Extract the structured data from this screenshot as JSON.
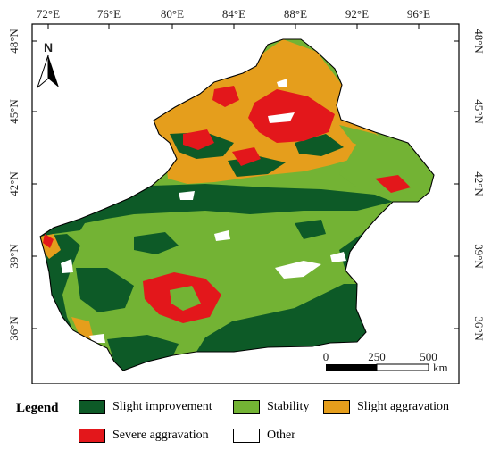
{
  "map": {
    "north_arrow_label": "N",
    "lon_ticks": [
      "72°E",
      "76°E",
      "80°E",
      "84°E",
      "88°E",
      "92°E",
      "96°E"
    ],
    "lat_ticks": [
      "48°N",
      "45°N",
      "42°N",
      "39°N",
      "36°N"
    ],
    "scale_bar": {
      "labels": [
        "0",
        "250",
        "500"
      ],
      "unit": "km"
    }
  },
  "legend": {
    "title": "Legend",
    "items": [
      {
        "label": "Slight improvement",
        "color": "#0d5a27"
      },
      {
        "label": "Stability",
        "color": "#73b334"
      },
      {
        "label": "Slight aggravation",
        "color": "#e59e1c"
      },
      {
        "label": "Severe aggravation",
        "color": "#e3171b"
      },
      {
        "label": "Other",
        "color": "#ffffff"
      }
    ]
  },
  "colors": {
    "stability": "#73b334",
    "improvement": "#0d5a27",
    "slight": "#e59e1c",
    "severe": "#e3171b",
    "other": "#ffffff"
  }
}
